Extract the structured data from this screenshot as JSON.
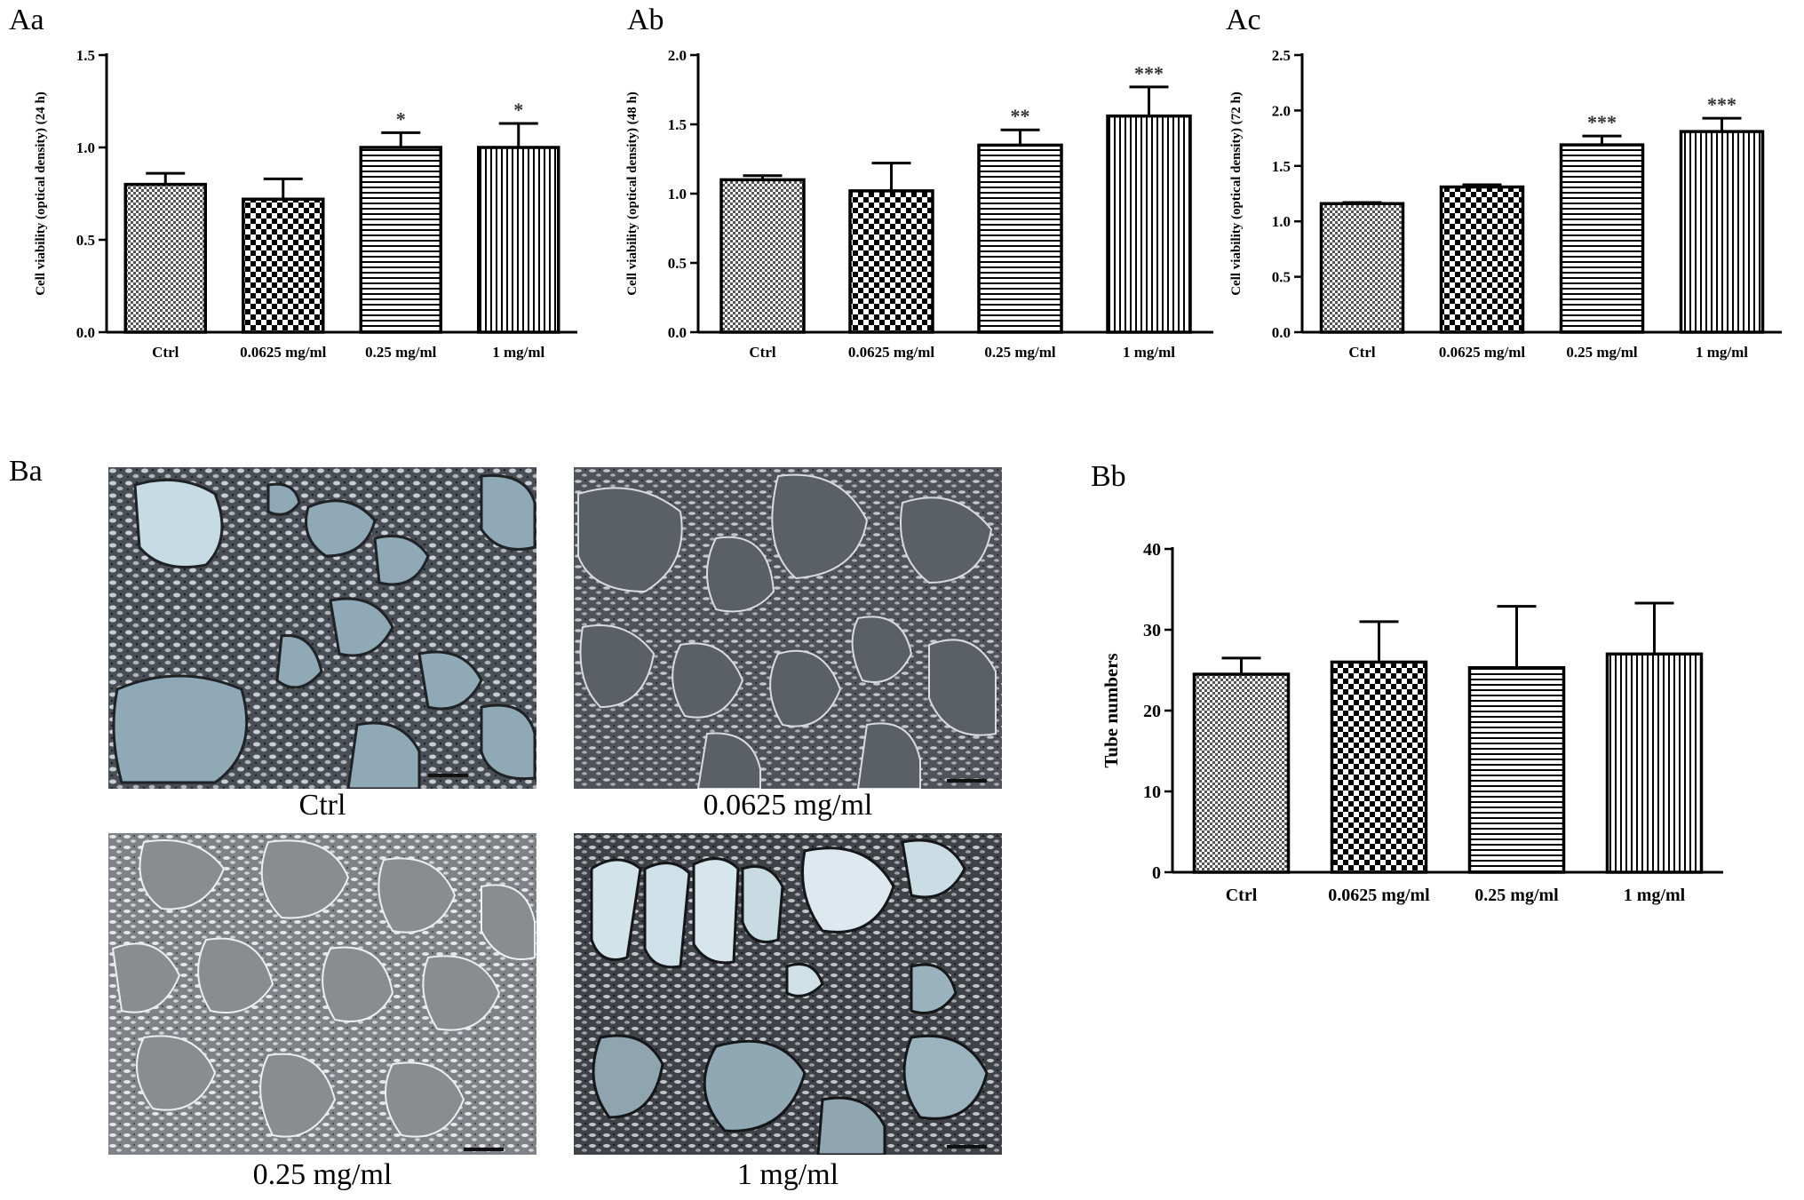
{
  "panels": {
    "aa": "Aa",
    "ab": "Ab",
    "ac": "Ac",
    "ba": "Ba",
    "bb": "Bb"
  },
  "micrographs": [
    {
      "caption": "Ctrl"
    },
    {
      "caption": "0.0625 mg/ml"
    },
    {
      "caption": "0.25 mg/ml"
    },
    {
      "caption": "1 mg/ml"
    }
  ],
  "chart_data": [
    {
      "id": "Aa",
      "type": "bar",
      "categories": [
        "Ctrl",
        "0.0625 mg/ml",
        "0.25 mg/ml",
        "1 mg/ml"
      ],
      "values": [
        0.8,
        0.72,
        1.0,
        1.0
      ],
      "errors": [
        0.06,
        0.11,
        0.08,
        0.13
      ],
      "significance": [
        "",
        "",
        "*",
        "*"
      ],
      "ylabel": "Cell viability (optical density) (24 h)",
      "xlabel": "",
      "ylim": [
        0,
        1.5
      ],
      "yticks": [
        "0.0",
        "0.5",
        "1.0",
        "1.5"
      ],
      "patterns": [
        "fine-check",
        "check",
        "horizontal",
        "vertical"
      ]
    },
    {
      "id": "Ab",
      "type": "bar",
      "categories": [
        "Ctrl",
        "0.0625 mg/ml",
        "0.25 mg/ml",
        "1 mg/ml"
      ],
      "values": [
        1.1,
        1.02,
        1.35,
        1.56
      ],
      "errors": [
        0.03,
        0.2,
        0.11,
        0.21
      ],
      "significance": [
        "",
        "",
        "**",
        "***"
      ],
      "ylabel": "Cell viability (optical density) (48 h)",
      "xlabel": "",
      "ylim": [
        0,
        2.0
      ],
      "yticks": [
        "0.0",
        "0.5",
        "1.0",
        "1.5",
        "2.0"
      ],
      "patterns": [
        "fine-check",
        "check",
        "horizontal",
        "vertical"
      ]
    },
    {
      "id": "Ac",
      "type": "bar",
      "categories": [
        "Ctrl",
        "0.0625 mg/ml",
        "0.25 mg/ml",
        "1 mg/ml"
      ],
      "values": [
        1.16,
        1.31,
        1.69,
        1.81
      ],
      "errors": [
        0.01,
        0.02,
        0.08,
        0.12
      ],
      "significance": [
        "",
        "",
        "***",
        "***"
      ],
      "ylabel": "Cell viability (optical density) (72 h)",
      "xlabel": "",
      "ylim": [
        0,
        2.5
      ],
      "yticks": [
        "0.0",
        "0.5",
        "1.0",
        "1.5",
        "2.0",
        "2.5"
      ],
      "patterns": [
        "fine-check",
        "check",
        "horizontal",
        "vertical"
      ]
    },
    {
      "id": "Bb",
      "type": "bar",
      "categories": [
        "Ctrl",
        "0.0625 mg/ml",
        "0.25 mg/ml",
        "1 mg/ml"
      ],
      "values": [
        24.5,
        26.0,
        25.3,
        27.0
      ],
      "errors": [
        2.0,
        5.0,
        7.6,
        6.3
      ],
      "significance": [
        "",
        "",
        "",
        ""
      ],
      "ylabel": "Tube numbers",
      "xlabel": "",
      "ylim": [
        0,
        40
      ],
      "yticks": [
        "0",
        "10",
        "20",
        "30",
        "40"
      ],
      "patterns": [
        "fine-check",
        "check",
        "horizontal",
        "vertical"
      ]
    }
  ]
}
